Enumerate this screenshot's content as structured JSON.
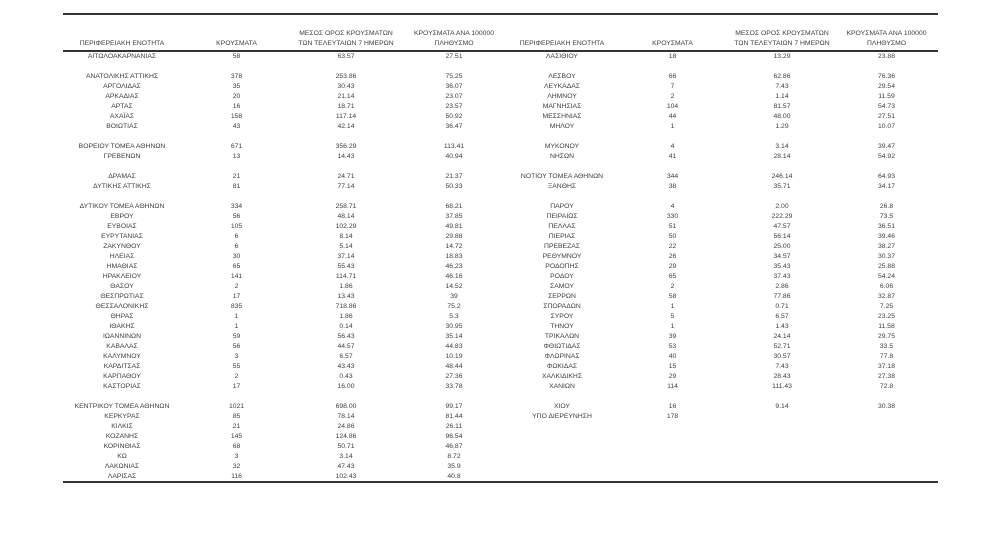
{
  "table": {
    "headers": {
      "region": "ΠΕΡΙΦΕΡΕΙΑΚΗ ΕΝΟΤΗΤΑ",
      "cases": "ΚΡΟΥΣΜΑΤΑ",
      "avg7": "ΜΕΣΟΣ ΟΡΟΣ ΚΡΟΥΣΜΑΤΩΝ\nΤΩΝ ΤΕΛΕΥΤΑΙΩΝ 7 ΗΜΕΡΩΝ",
      "per100k": "ΚΡΟΥΣΜΑΤΑ ΑΝΑ 100000\nΠΛΗΘΥΣΜΟ"
    },
    "left_rows": [
      {
        "region": "ΑΙΤΩΛΟΑΚΑΡΝΑΝΙΑΣ",
        "cases": "58",
        "avg7": "63.57",
        "per100k": "27.51"
      },
      null,
      {
        "region": "ΑΝΑΤΟΛΙΚΗΣ ΑΤΤΙΚΗΣ",
        "cases": "378",
        "avg7": "253.86",
        "per100k": "75.25"
      },
      {
        "region": "ΑΡΓΟΛΙΔΑΣ",
        "cases": "35",
        "avg7": "30.43",
        "per100k": "36.07"
      },
      {
        "region": "ΑΡΚΑΔΙΑΣ",
        "cases": "20",
        "avg7": "21.14",
        "per100k": "23.07"
      },
      {
        "region": "ΑΡΤΑΣ",
        "cases": "16",
        "avg7": "18.71",
        "per100k": "23.57"
      },
      {
        "region": "ΑΧΑΪΑΣ",
        "cases": "158",
        "avg7": "117.14",
        "per100k": "50.92"
      },
      {
        "region": "ΒΟΙΩΤΙΑΣ",
        "cases": "43",
        "avg7": "42.14",
        "per100k": "36.47"
      },
      null,
      {
        "region": "ΒΟΡΕΙΟΥ ΤΟΜΕΑ ΑΘΗΝΩΝ",
        "cases": "671",
        "avg7": "356.29",
        "per100k": "113.41"
      },
      {
        "region": "ΓΡΕΒΕΝΩΝ",
        "cases": "13",
        "avg7": "14.43",
        "per100k": "40.94"
      },
      null,
      {
        "region": "ΔΡΑΜΑΣ",
        "cases": "21",
        "avg7": "24.71",
        "per100k": "21.37"
      },
      {
        "region": "ΔΥΤΙΚΗΣ ΑΤΤΙΚΗΣ",
        "cases": "81",
        "avg7": "77.14",
        "per100k": "50.33"
      },
      null,
      {
        "region": "ΔΥΤΙΚΟΥ ΤΟΜΕΑ ΑΘΗΝΩΝ",
        "cases": "334",
        "avg7": "258.71",
        "per100k": "68.21"
      },
      {
        "region": "ΕΒΡΟΥ",
        "cases": "56",
        "avg7": "48.14",
        "per100k": "37.85"
      },
      {
        "region": "ΕΥΒΟΙΑΣ",
        "cases": "105",
        "avg7": "102.29",
        "per100k": "49.81"
      },
      {
        "region": "ΕΥΡΥΤΑΝΙΑΣ",
        "cases": "6",
        "avg7": "8.14",
        "per100k": "29.88"
      },
      {
        "region": "ΖΑΚΥΝΘΟΥ",
        "cases": "6",
        "avg7": "5.14",
        "per100k": "14.72"
      },
      {
        "region": "ΗΛΕΙΑΣ",
        "cases": "30",
        "avg7": "37.14",
        "per100k": "18.83"
      },
      {
        "region": "ΗΜΑΘΙΑΣ",
        "cases": "65",
        "avg7": "55.43",
        "per100k": "46.23"
      },
      {
        "region": "ΗΡΑΚΛΕΙΟΥ",
        "cases": "141",
        "avg7": "114.71",
        "per100k": "46.16"
      },
      {
        "region": "ΘΑΣΟΥ",
        "cases": "2",
        "avg7": "1.86",
        "per100k": "14.52"
      },
      {
        "region": "ΘΕΣΠΡΩΤΙΑΣ",
        "cases": "17",
        "avg7": "13.43",
        "per100k": "39"
      },
      {
        "region": "ΘΕΣΣΑΛΟΝΙΚΗΣ",
        "cases": "835",
        "avg7": "718.86",
        "per100k": "75.2"
      },
      {
        "region": "ΘΗΡΑΣ",
        "cases": "1",
        "avg7": "1.86",
        "per100k": "5.3"
      },
      {
        "region": "ΙΘΑΚΗΣ",
        "cases": "1",
        "avg7": "0.14",
        "per100k": "30.95"
      },
      {
        "region": "ΙΩΑΝΝΙΝΩΝ",
        "cases": "59",
        "avg7": "56.43",
        "per100k": "35.14"
      },
      {
        "region": "ΚΑΒΑΛΑΣ",
        "cases": "56",
        "avg7": "44.57",
        "per100k": "44.83"
      },
      {
        "region": "ΚΑΛΥΜΝΟΥ",
        "cases": "3",
        "avg7": "6.57",
        "per100k": "10.19"
      },
      {
        "region": "ΚΑΡΔΙΤΣΑΣ",
        "cases": "55",
        "avg7": "43.43",
        "per100k": "48.44"
      },
      {
        "region": "ΚΑΡΠΑΘΟΥ",
        "cases": "2",
        "avg7": "0.43",
        "per100k": "27.36"
      },
      {
        "region": "ΚΑΣΤΟΡΙΑΣ",
        "cases": "17",
        "avg7": "16.00",
        "per100k": "33.78"
      },
      null,
      {
        "region": "ΚΕΝΤΡΙΚΟΥ ΤΟΜΕΑ ΑΘΗΝΩΝ",
        "cases": "1021",
        "avg7": "698.00",
        "per100k": "99.17"
      },
      {
        "region": "ΚΕΡΚΥΡΑΣ",
        "cases": "85",
        "avg7": "78.14",
        "per100k": "81.44"
      },
      {
        "region": "ΚΙΛΚΙΣ",
        "cases": "21",
        "avg7": "24.86",
        "per100k": "26.11"
      },
      {
        "region": "ΚΟΖΑΝΗΣ",
        "cases": "145",
        "avg7": "124.86",
        "per100k": "96.54"
      },
      {
        "region": "ΚΟΡΙΝΘΙΑΣ",
        "cases": "68",
        "avg7": "50.71",
        "per100k": "46.87"
      },
      {
        "region": "ΚΩ",
        "cases": "3",
        "avg7": "3.14",
        "per100k": "8.72"
      },
      {
        "region": "ΛΑΚΩΝΙΑΣ",
        "cases": "32",
        "avg7": "47.43",
        "per100k": "35.9"
      },
      {
        "region": "ΛΑΡΙΣΑΣ",
        "cases": "116",
        "avg7": "102.43",
        "per100k": "40.8"
      }
    ],
    "right_rows": [
      {
        "region": "ΛΑΣΙΘΙΟΥ",
        "cases": "18",
        "avg7": "13.29",
        "per100k": "23.88"
      },
      null,
      {
        "region": "ΛΕΣΒΟΥ",
        "cases": "66",
        "avg7": "62.86",
        "per100k": "76.36"
      },
      {
        "region": "ΛΕΥΚΑΔΑΣ",
        "cases": "7",
        "avg7": "7.43",
        "per100k": "29.54"
      },
      {
        "region": "ΛΗΜΝΟΥ",
        "cases": "2",
        "avg7": "1.14",
        "per100k": "11.59"
      },
      {
        "region": "ΜΑΓΝΗΣΙΑΣ",
        "cases": "104",
        "avg7": "81.57",
        "per100k": "54.73"
      },
      {
        "region": "ΜΕΣΣΗΝΙΑΣ",
        "cases": "44",
        "avg7": "48.00",
        "per100k": "27.51"
      },
      {
        "region": "ΜΗΛΟΥ",
        "cases": "1",
        "avg7": "1.29",
        "per100k": "10.07"
      },
      null,
      {
        "region": "ΜΥΚΟΝΟΥ",
        "cases": "4",
        "avg7": "3.14",
        "per100k": "39.47"
      },
      {
        "region": "ΝΗΣΩΝ",
        "cases": "41",
        "avg7": "28.14",
        "per100k": "54.92"
      },
      null,
      {
        "region": "ΝΟΤΙΟΥ ΤΟΜΕΑ ΑΘΗΝΩΝ",
        "cases": "344",
        "avg7": "246.14",
        "per100k": "64.93"
      },
      {
        "region": "ΞΑΝΘΗΣ",
        "cases": "38",
        "avg7": "35.71",
        "per100k": "34.17"
      },
      null,
      {
        "region": "ΠΑΡΟΥ",
        "cases": "4",
        "avg7": "2.00",
        "per100k": "26.8"
      },
      {
        "region": "ΠΕΙΡΑΙΩΣ",
        "cases": "330",
        "avg7": "222.29",
        "per100k": "73.5"
      },
      {
        "region": "ΠΕΛΛΑΣ",
        "cases": "51",
        "avg7": "47.57",
        "per100k": "36.51"
      },
      {
        "region": "ΠΙΕΡΙΑΣ",
        "cases": "50",
        "avg7": "56.14",
        "per100k": "39.46"
      },
      {
        "region": "ΠΡΕΒΕΖΑΣ",
        "cases": "22",
        "avg7": "25.00",
        "per100k": "38.27"
      },
      {
        "region": "ΡΕΘΥΜΝΟΥ",
        "cases": "26",
        "avg7": "34.57",
        "per100k": "30.37"
      },
      {
        "region": "ΡΟΔΟΠΗΣ",
        "cases": "29",
        "avg7": "35.43",
        "per100k": "25.88"
      },
      {
        "region": "ΡΟΔΟΥ",
        "cases": "65",
        "avg7": "37.43",
        "per100k": "54.24"
      },
      {
        "region": "ΣΑΜΟΥ",
        "cases": "2",
        "avg7": "2.86",
        "per100k": "6.06"
      },
      {
        "region": "ΣΕΡΡΩΝ",
        "cases": "58",
        "avg7": "77.86",
        "per100k": "32.87"
      },
      {
        "region": "ΣΠΟΡΑΔΩΝ",
        "cases": "1",
        "avg7": "0.71",
        "per100k": "7.25"
      },
      {
        "region": "ΣΥΡΟΥ",
        "cases": "5",
        "avg7": "6.57",
        "per100k": "23.25"
      },
      {
        "region": "ΤΗΝΟΥ",
        "cases": "1",
        "avg7": "1.43",
        "per100k": "11.58"
      },
      {
        "region": "ΤΡΙΚΑΛΩΝ",
        "cases": "39",
        "avg7": "24.14",
        "per100k": "29.75"
      },
      {
        "region": "ΦΘΙΩΤΙΔΑΣ",
        "cases": "53",
        "avg7": "52.71",
        "per100k": "33.5"
      },
      {
        "region": "ΦΛΩΡΙΝΑΣ",
        "cases": "40",
        "avg7": "30.57",
        "per100k": "77.8"
      },
      {
        "region": "ΦΩΚΙΔΑΣ",
        "cases": "15",
        "avg7": "7.43",
        "per100k": "37.18"
      },
      {
        "region": "ΧΑΛΚΙΔΙΚΗΣ",
        "cases": "29",
        "avg7": "28.43",
        "per100k": "27.38"
      },
      {
        "region": "ΧΑΝΙΩΝ",
        "cases": "114",
        "avg7": "111.43",
        "per100k": "72.8"
      },
      null,
      {
        "region": "ΧΙΟΥ",
        "cases": "16",
        "avg7": "9.14",
        "per100k": "30.38"
      },
      {
        "region": "ΥΠΟ ΔΙΕΡΕΥΝΗΣΗ",
        "cases": "178",
        "avg7": "",
        "per100k": ""
      }
    ]
  }
}
